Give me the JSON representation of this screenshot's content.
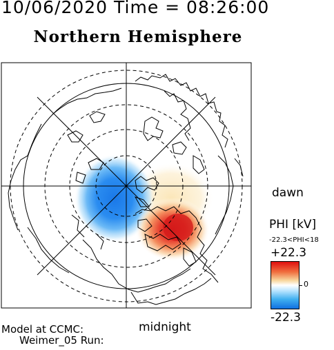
{
  "header": {
    "datetime": "10/06/2020 Time = 08:26:00",
    "hemisphere": "Northern Hemisphere"
  },
  "map_labels": {
    "dawn": "dawn",
    "midnight": "midnight"
  },
  "model_info": {
    "line1": "Model at CCMC:",
    "line2": "Weimer_05 Run:"
  },
  "colorbar": {
    "title": "PHI [kV]",
    "range_text": "-22.3<PHI<18",
    "max_label": "+22.3",
    "zero_label": "0",
    "min_label": "-22.3",
    "max_color": "#e01010",
    "mid_color": "#ffffff",
    "min_color": "#1070e0"
  },
  "potential_cells": {
    "negative_cell": {
      "sign": "negative",
      "color": "#2a8cf0",
      "side": "dusk"
    },
    "positive_cell": {
      "sign": "positive",
      "color": "#e02020",
      "side": "dawn"
    }
  },
  "icons": [
    "coastline-map",
    "latitude-circles",
    "meridian-lines"
  ]
}
